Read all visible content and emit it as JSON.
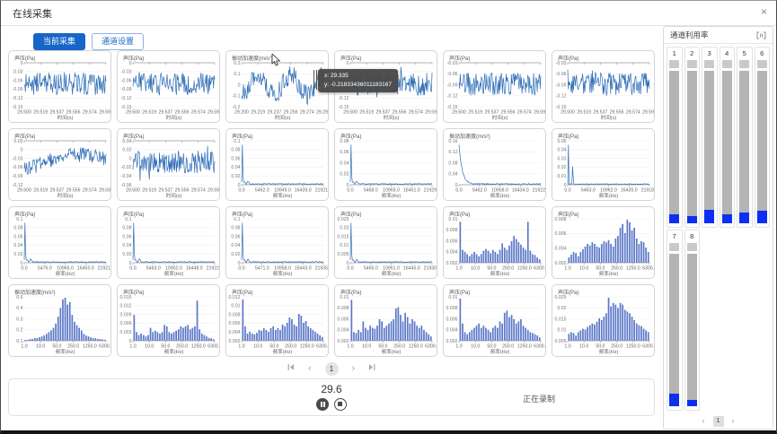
{
  "window": {
    "title": "在线采集",
    "close_label": "×"
  },
  "tabs": {
    "current": "当前采集",
    "settings": "通道设置"
  },
  "colors": {
    "tab_blue": "#1765c8",
    "line_blue": "#2e6db6",
    "bar_blue": "#5b78c8",
    "gauge_blue": "#0d2ff0"
  },
  "tooltip": {
    "line1": "x: 29.335",
    "line2": "y: -0.21833436011183167"
  },
  "main_pagination": {
    "page": "1"
  },
  "bottom_bar": {
    "elapsed": "29.6",
    "status": "正在录制"
  },
  "right_panel": {
    "title": "通道利用率",
    "page": "1",
    "channels": [
      {
        "label": "1",
        "utilization": 6
      },
      {
        "label": "2",
        "utilization": 5
      },
      {
        "label": "3",
        "utilization": 9
      },
      {
        "label": "4",
        "utilization": 6
      },
      {
        "label": "5",
        "utilization": 7
      },
      {
        "label": "6",
        "utilization": 8
      },
      {
        "label": "7",
        "utilization": 8
      },
      {
        "label": "8",
        "utilization": 4
      }
    ]
  },
  "chart_data": [
    {
      "type": "line",
      "profile": "noise",
      "seed": 11,
      "title": "声压(Pa)",
      "xlabel": "时间(s)",
      "xticks": [
        "29.500",
        "29.519",
        "29.537",
        "29.556",
        "29.574",
        "29.593"
      ],
      "yticks": [
        "0",
        "-0.03",
        "-0.06",
        "-0.09",
        "-0.12",
        "-0.15"
      ]
    },
    {
      "type": "line",
      "profile": "noise",
      "seed": 22,
      "title": "声压(Pa)",
      "xlabel": "时间(s)",
      "xticks": [
        "29.500",
        "29.519",
        "29.537",
        "29.556",
        "29.574",
        "29.593"
      ],
      "yticks": [
        "0",
        "-0.03",
        "-0.06",
        "-0.09",
        "-0.12",
        "-0.15"
      ]
    },
    {
      "type": "line",
      "profile": "wavy",
      "seed": 33,
      "title": "振动加速度(m/s²)",
      "xlabel": "时间(s)",
      "cursor": true,
      "xticks": [
        "29.200",
        "29.219",
        "29.237",
        "29.256",
        "29.274",
        "29.293"
      ],
      "yticks": [
        "0.2",
        "0.1",
        "0",
        "-0.1",
        "-0.2"
      ]
    },
    {
      "type": "line",
      "profile": "noise",
      "seed": 44,
      "title": "声压(Pa)",
      "xlabel": "时间(s)",
      "tooltip": true,
      "xticks": [
        "29.500",
        "29.519",
        "29.537",
        "29.556",
        "29.574",
        "29.593"
      ],
      "yticks": [
        "0",
        "-0.03",
        "-0.06",
        "-0.09",
        "-0.12",
        "-0.15"
      ]
    },
    {
      "type": "line",
      "profile": "noise",
      "seed": 55,
      "title": "声压(Pa)",
      "xlabel": "时间(s)",
      "xticks": [
        "29.500",
        "29.519",
        "29.537",
        "29.556",
        "29.574",
        "29.593"
      ],
      "yticks": [
        "-0.03",
        "-0.06",
        "-0.09",
        "-0.12",
        "-0.15"
      ]
    },
    {
      "type": "line",
      "profile": "noise",
      "seed": 66,
      "title": "声压(Pa)",
      "xlabel": "时间(s)",
      "xticks": [
        "29.500",
        "29.519",
        "29.537",
        "29.556",
        "29.574",
        "29.593"
      ],
      "yticks": [
        "-0.03",
        "-0.06",
        "-0.09",
        "-0.12",
        "-0.15"
      ]
    },
    {
      "type": "line",
      "profile": "drift",
      "seed": 77,
      "title": "声压(Pa)",
      "xlabel": "时间(s)",
      "xticks": [
        "29.500",
        "29.519",
        "29.537",
        "29.556",
        "29.574",
        "29.593"
      ],
      "yticks": [
        "0.03",
        "0",
        "-0.03",
        "-0.06",
        "-0.09",
        "-0.12"
      ]
    },
    {
      "type": "line",
      "profile": "noise",
      "seed": 88,
      "title": "声压(Pa)",
      "xlabel": "时间(s)",
      "xticks": [
        "29.500",
        "29.519",
        "29.537",
        "29.556",
        "29.574",
        "29.593"
      ],
      "yticks": [
        "0.04",
        "0.02",
        "0",
        "-0.02",
        "-0.04",
        "-0.06"
      ]
    },
    {
      "type": "spectrum",
      "profile": "spike",
      "seed": 91,
      "title": "声压(Pa)",
      "xlabel": "频率(Hz)",
      "xticks": [
        "0.0",
        "5462.0",
        "10949.0",
        "16439.0",
        "21921.0"
      ],
      "yticks": [
        "0.1",
        "0.08",
        "0.06",
        "0.04",
        "0.02",
        "0"
      ]
    },
    {
      "type": "spectrum",
      "profile": "spike",
      "seed": 92,
      "title": "声压(Pa)",
      "xlabel": "频率(Hz)",
      "xticks": [
        "0.0",
        "5468.0",
        "10965.0",
        "16451.0",
        "21929.0"
      ],
      "yticks": [
        "0.08",
        "0.06",
        "0.04",
        "0.02",
        "0"
      ]
    },
    {
      "type": "spectrum",
      "profile": "decay",
      "seed": 93,
      "title": "振动加速度(m/s²)",
      "xlabel": "频率(Hz)",
      "xticks": [
        "0.0",
        "5462.0",
        "10958.0",
        "16434.0",
        "21922.0"
      ],
      "yticks": [
        "0.16",
        "0.12",
        "0.08",
        "0.04",
        "0"
      ]
    },
    {
      "type": "spectrum",
      "profile": "twospike",
      "seed": 94,
      "title": "声压(Pa)",
      "xlabel": "频率(Hz)",
      "xticks": [
        "0.0",
        "5463.0",
        "10962.0",
        "16435.0",
        "21918.0"
      ],
      "yticks": [
        "0.05",
        "0.04",
        "0.03",
        "0.02",
        "0.01",
        "0"
      ]
    },
    {
      "type": "spectrum",
      "profile": "spike",
      "seed": 95,
      "title": "声压(Pa)",
      "xlabel": "频率(Hz)",
      "xticks": [
        "0.0",
        "5476.0",
        "10965.0",
        "16455.0",
        "21921.0"
      ],
      "yticks": [
        "0.1",
        "0.08",
        "0.06",
        "0.04",
        "0.02",
        "0"
      ]
    },
    {
      "type": "spectrum",
      "profile": "spike",
      "seed": 96,
      "title": "声压(Pa)",
      "xlabel": "频率(Hz)",
      "xticks": [
        "0.0",
        "5463.0",
        "10952.0",
        "16448.0",
        "21922.0"
      ],
      "yticks": [
        "0.1",
        "0.08",
        "0.06",
        "0.04",
        "0.02",
        "0"
      ]
    },
    {
      "type": "spectrum",
      "profile": "spike",
      "seed": 97,
      "title": "声压(Pa)",
      "xlabel": "频率(Hz)",
      "xticks": [
        "0.0",
        "5471.0",
        "10958.0",
        "16443.0",
        "21935.0"
      ],
      "yticks": [
        "0.1",
        "0.08",
        "0.06",
        "0.04",
        "0.02",
        "0"
      ]
    },
    {
      "type": "spectrum",
      "profile": "spike",
      "seed": 98,
      "title": "声压(Pa)",
      "xlabel": "频率(Hz)",
      "xticks": [
        "0.0",
        "5465.0",
        "10951.0",
        "16445.0",
        "21930.0"
      ],
      "yticks": [
        "0.025",
        "0.02",
        "0.015",
        "0.01",
        "0.005",
        "0"
      ]
    },
    {
      "type": "bar",
      "title": "声压(Pa)",
      "xlabel": "频率(Hz)",
      "xticks": [
        "1.0",
        "10.0",
        "50.0",
        "250.0",
        "1250.0",
        "6300.0"
      ],
      "yticks": [
        "0.01",
        "0.008",
        "0.006",
        "0.004",
        "0.002"
      ],
      "values": [
        0.0095,
        0.003,
        0.0025,
        0.002,
        0.0015,
        0.002,
        0.0025,
        0.002,
        0.0015,
        0.002,
        0.0028,
        0.0032,
        0.0028,
        0.0022,
        0.003,
        0.0025,
        0.002,
        0.003,
        0.0045,
        0.0035,
        0.003,
        0.004,
        0.005,
        0.0062,
        0.0055,
        0.0048,
        0.0042,
        0.0035,
        0.003,
        0.0095,
        0.0028,
        0.002,
        0.0018,
        0.0012,
        0.0008
      ]
    },
    {
      "type": "bar",
      "title": "声压(Pa)",
      "xlabel": "频率(Hz)",
      "xticks": [
        "1.0",
        "10.0",
        "50.0",
        "250.0",
        "1250.0",
        "6300.0"
      ],
      "yticks": [
        "0.008",
        "0.006",
        "0.004",
        "0.002"
      ],
      "values": [
        0.001,
        0.0015,
        0.002,
        0.0018,
        0.0012,
        0.002,
        0.0025,
        0.003,
        0.0035,
        0.0032,
        0.0038,
        0.0035,
        0.003,
        0.0028,
        0.0035,
        0.004,
        0.0038,
        0.0042,
        0.0035,
        0.003,
        0.0045,
        0.005,
        0.0065,
        0.0072,
        0.0055,
        0.008,
        0.0075,
        0.006,
        0.0065,
        0.0045,
        0.0035,
        0.004,
        0.0038,
        0.0028,
        0.002
      ]
    },
    {
      "type": "bar",
      "title": "振动加速度(m/s²)",
      "xlabel": "频率(Hz)",
      "xticks": [
        "1.0",
        "10.0",
        "50.0",
        "250.0",
        "1250.0",
        "6300.0"
      ],
      "yticks": [
        "0.5",
        "0.4",
        "0.3",
        "0.2",
        "0.1"
      ],
      "values": [
        0.01,
        0.01,
        0.02,
        0.02,
        0.03,
        0.03,
        0.04,
        0.05,
        0.06,
        0.08,
        0.1,
        0.12,
        0.15,
        0.2,
        0.28,
        0.38,
        0.48,
        0.55,
        0.42,
        0.45,
        0.3,
        0.22,
        0.18,
        0.15,
        0.12,
        0.08,
        0.06,
        0.05,
        0.04,
        0.03,
        0.03,
        0.02,
        0.02,
        0.015,
        0.01
      ]
    },
    {
      "type": "bar",
      "title": "声压(Pa)",
      "xlabel": "频率(Hz)",
      "xticks": [
        "1.0",
        "10.0",
        "50.0",
        "250.0",
        "1250.0",
        "6300.0"
      ],
      "yticks": [
        "0.015",
        "0.012",
        "0.009",
        "0.006",
        "0.003",
        "0"
      ],
      "values": [
        0.009,
        0.003,
        0.002,
        0.0025,
        0.002,
        0.0015,
        0.002,
        0.0045,
        0.003,
        0.0035,
        0.003,
        0.0025,
        0.003,
        0.0055,
        0.005,
        0.003,
        0.0025,
        0.003,
        0.0035,
        0.004,
        0.005,
        0.0045,
        0.005,
        0.0055,
        0.004,
        0.0045,
        0.005,
        0.014,
        0.004,
        0.0025,
        0.002,
        0.0015,
        0.001,
        0.0008,
        0.0005
      ]
    },
    {
      "type": "bar",
      "title": "声压(Pa)",
      "xlabel": "频率(Hz)",
      "xticks": [
        "1.0",
        "10.0",
        "50.0",
        "250.0",
        "1250.0",
        "6300.0"
      ],
      "yticks": [
        "0.012",
        "0.01",
        "0.008",
        "0.006",
        "0.004",
        "0.002"
      ],
      "values": [
        0.0115,
        0.004,
        0.002,
        0.0025,
        0.002,
        0.0018,
        0.0022,
        0.003,
        0.0028,
        0.0035,
        0.003,
        0.0025,
        0.0035,
        0.004,
        0.003,
        0.0035,
        0.003,
        0.0045,
        0.004,
        0.005,
        0.0065,
        0.006,
        0.0045,
        0.004,
        0.0075,
        0.007,
        0.005,
        0.0055,
        0.004,
        0.0035,
        0.003,
        0.0025,
        0.002,
        0.0015,
        0.001
      ]
    },
    {
      "type": "bar",
      "title": "声压(Pa)",
      "xlabel": "频率(Hz)",
      "xticks": [
        "1.0",
        "10.0",
        "50.0",
        "250.0",
        "1250.0",
        "6300.0"
      ],
      "yticks": [
        "0.01",
        "0.008",
        "0.006",
        "0.004",
        "0.002"
      ],
      "values": [
        0.0095,
        0.002,
        0.0018,
        0.0025,
        0.002,
        0.0045,
        0.003,
        0.0025,
        0.0035,
        0.003,
        0.0028,
        0.0035,
        0.005,
        0.0045,
        0.003,
        0.0035,
        0.004,
        0.0045,
        0.005,
        0.0075,
        0.0078,
        0.006,
        0.0045,
        0.0065,
        0.0055,
        0.004,
        0.005,
        0.0045,
        0.0035,
        0.003,
        0.0035,
        0.0025,
        0.002,
        0.0015,
        0.001
      ]
    },
    {
      "type": "bar",
      "title": "声压(Pa)",
      "xlabel": "频率(Hz)",
      "xticks": [
        "1.0",
        "10.0",
        "50.0",
        "250.0",
        "1250.0",
        "6300.0"
      ],
      "yticks": [
        "0.01",
        "0.008",
        "0.006",
        "0.004",
        "0.002"
      ],
      "values": [
        0.0098,
        0.004,
        0.002,
        0.0015,
        0.002,
        0.0025,
        0.003,
        0.0035,
        0.004,
        0.003,
        0.0035,
        0.003,
        0.0025,
        0.002,
        0.003,
        0.0035,
        0.003,
        0.0045,
        0.004,
        0.0065,
        0.007,
        0.0055,
        0.006,
        0.005,
        0.004,
        0.0045,
        0.005,
        0.0035,
        0.003,
        0.0025,
        0.002,
        0.0018,
        0.0015,
        0.0012,
        0.0008
      ]
    },
    {
      "type": "bar",
      "title": "声压(Pa)",
      "xlabel": "频率(Hz)",
      "xticks": [
        "1.0",
        "10.0",
        "50.0",
        "250.0",
        "1250.0",
        "6300.0"
      ],
      "yticks": [
        "0.025",
        "0.02",
        "0.015",
        "0.01",
        "0.005"
      ],
      "values": [
        0.004,
        0.005,
        0.0045,
        0.003,
        0.005,
        0.006,
        0.007,
        0.0065,
        0.008,
        0.009,
        0.01,
        0.0095,
        0.011,
        0.013,
        0.012,
        0.014,
        0.016,
        0.027,
        0.02,
        0.022,
        0.021,
        0.019,
        0.022,
        0.021,
        0.018,
        0.017,
        0.016,
        0.014,
        0.012,
        0.01,
        0.009,
        0.0085,
        0.007,
        0.006,
        0.005
      ]
    }
  ]
}
